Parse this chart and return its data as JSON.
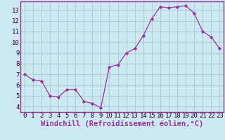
{
  "x": [
    0,
    1,
    2,
    3,
    4,
    5,
    6,
    7,
    8,
    9,
    10,
    11,
    12,
    13,
    14,
    15,
    16,
    17,
    18,
    19,
    20,
    21,
    22,
    23
  ],
  "y": [
    7.0,
    6.5,
    6.4,
    5.0,
    4.9,
    5.6,
    5.6,
    4.5,
    4.3,
    3.9,
    7.7,
    7.9,
    9.0,
    9.4,
    10.6,
    12.2,
    13.3,
    13.2,
    13.3,
    13.4,
    12.7,
    11.0,
    10.5,
    9.4
  ],
  "line_color": "#993399",
  "marker_color": "#993399",
  "bg_color": "#cce8f0",
  "grid_color": "#aaccdd",
  "xlabel": "Windchill (Refroidissement éolien,°C)",
  "xlabel_color": "#993399",
  "xlim": [
    -0.5,
    23.5
  ],
  "ylim": [
    3.5,
    13.8
  ],
  "yticks": [
    4,
    5,
    6,
    7,
    8,
    9,
    10,
    11,
    12,
    13
  ],
  "xticks": [
    0,
    1,
    2,
    3,
    4,
    5,
    6,
    7,
    8,
    9,
    10,
    11,
    12,
    13,
    14,
    15,
    16,
    17,
    18,
    19,
    20,
    21,
    22,
    23
  ],
  "tick_fontsize": 6.5,
  "xlabel_fontsize": 7.5
}
